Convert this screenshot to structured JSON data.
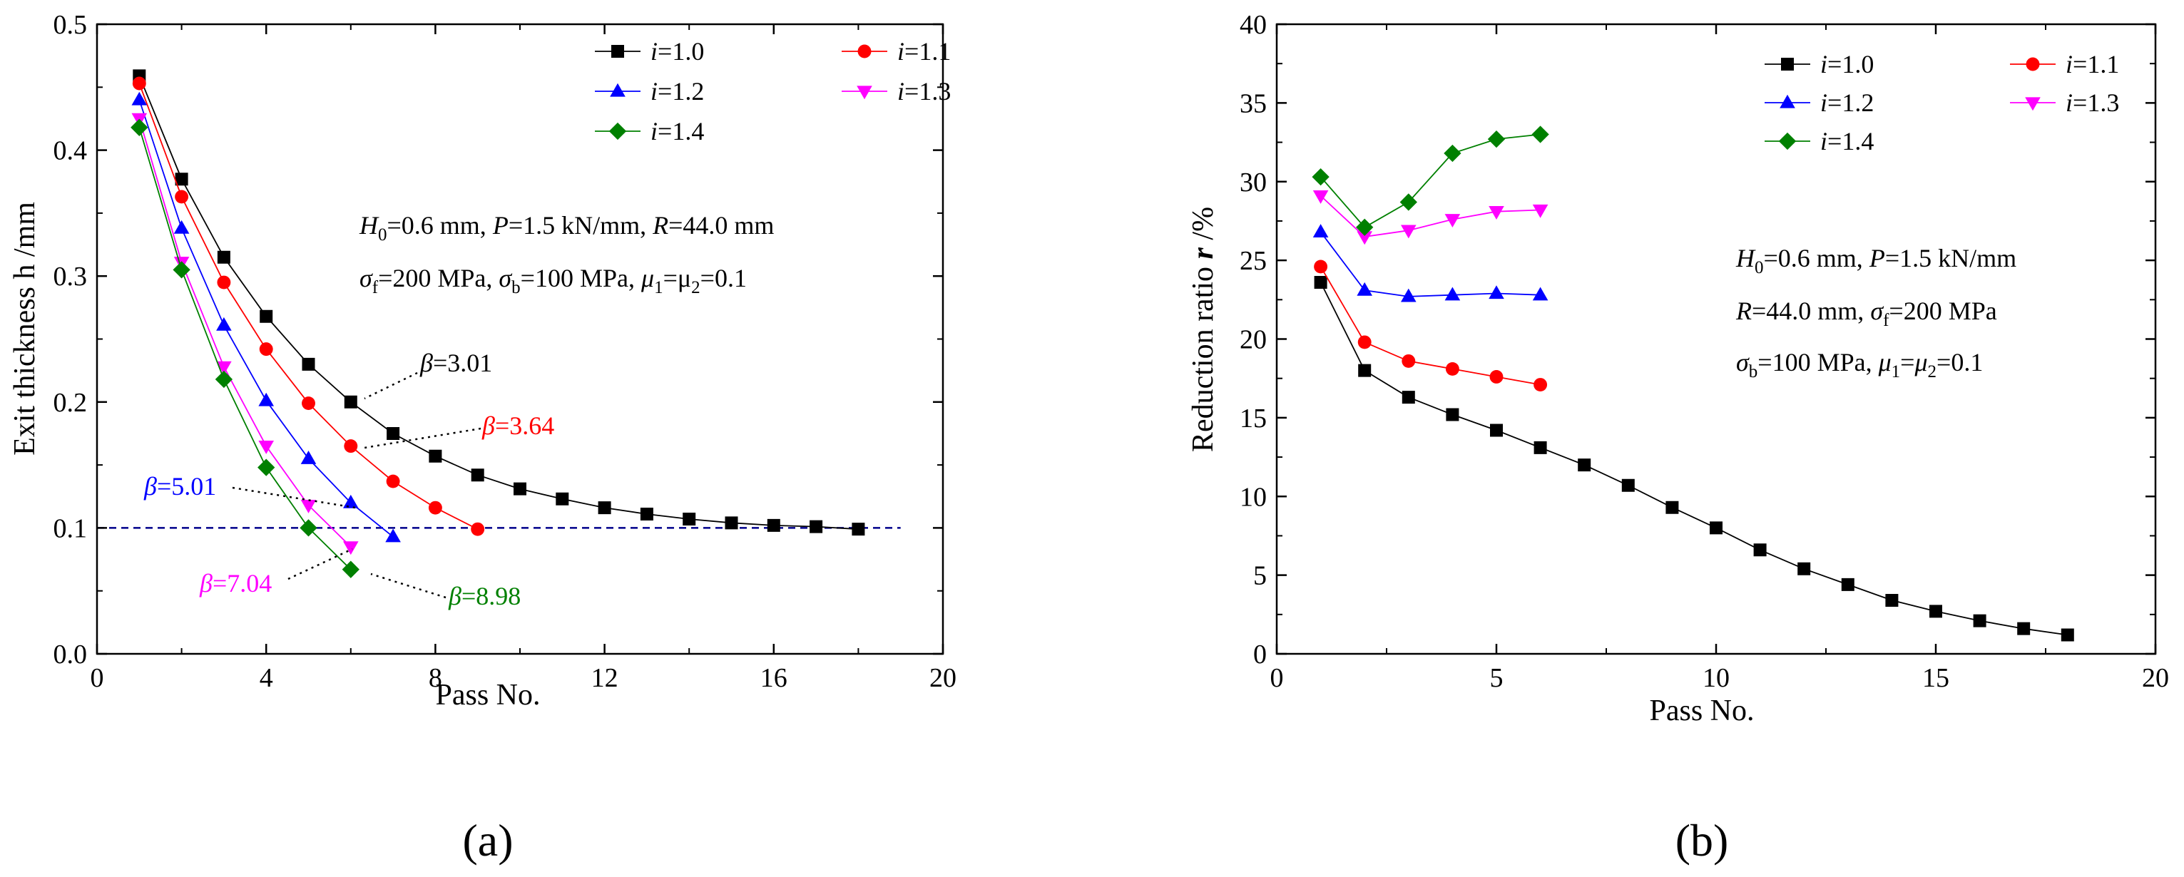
{
  "chart_data": [
    {
      "type": "line",
      "panel_label": "(a)",
      "xlabel": "Pass No.",
      "ylabel": "Exit thickness h /mm",
      "xlim": [
        0,
        20
      ],
      "ylim": [
        0,
        0.5
      ],
      "x_ticks": [
        0,
        4,
        8,
        12,
        16,
        20
      ],
      "y_ticks": [
        0.0,
        0.1,
        0.2,
        0.3,
        0.4,
        0.5
      ],
      "x_tick_labels": [
        "0",
        "4",
        "8",
        "12",
        "16",
        "20"
      ],
      "y_tick_labels": [
        "0.0",
        "0.1",
        "0.2",
        "0.3",
        "0.4",
        "0.5"
      ],
      "grid": false,
      "legend_position": "top-right",
      "series": [
        {
          "name": "i=1.0",
          "legend_var": "i",
          "legend_val": "=1.0",
          "color": "#000000",
          "marker": "square",
          "x": [
            1,
            2,
            3,
            4,
            5,
            6,
            7,
            8,
            9,
            10,
            11,
            12,
            13,
            14,
            15,
            16,
            17,
            18
          ],
          "y": [
            0.459,
            0.377,
            0.315,
            0.268,
            0.23,
            0.2,
            0.175,
            0.157,
            0.142,
            0.131,
            0.123,
            0.116,
            0.111,
            0.107,
            0.104,
            0.102,
            0.101,
            0.099
          ]
        },
        {
          "name": "i=1.1",
          "legend_var": "i",
          "legend_val": "=1.1",
          "color": "#ff0000",
          "marker": "circle",
          "x": [
            1,
            2,
            3,
            4,
            5,
            6,
            7,
            8,
            9
          ],
          "y": [
            0.453,
            0.363,
            0.295,
            0.242,
            0.199,
            0.165,
            0.137,
            0.116,
            0.099
          ]
        },
        {
          "name": "i=1.2",
          "legend_var": "i",
          "legend_val": "=1.2",
          "color": "#0000ff",
          "marker": "triangle-up",
          "x": [
            1,
            2,
            3,
            4,
            5,
            6,
            7
          ],
          "y": [
            0.44,
            0.338,
            0.261,
            0.201,
            0.155,
            0.12,
            0.093
          ]
        },
        {
          "name": "i=1.3",
          "legend_var": "i",
          "legend_val": "=1.3",
          "color": "#ff00ff",
          "marker": "triangle-down",
          "x": [
            1,
            2,
            3,
            4,
            5,
            6
          ],
          "y": [
            0.425,
            0.311,
            0.228,
            0.165,
            0.118,
            0.085
          ]
        },
        {
          "name": "i=1.4",
          "legend_var": "i",
          "legend_val": "=1.4",
          "color": "#008000",
          "marker": "diamond",
          "x": [
            1,
            2,
            3,
            4,
            5,
            6
          ],
          "y": [
            0.418,
            0.305,
            0.218,
            0.148,
            0.1,
            0.067
          ]
        }
      ],
      "reference_line": {
        "y": 0.1,
        "color": "#00008b"
      },
      "params": {
        "line1": {
          "H": "H",
          "H_sub": "0",
          "t1": "=0.6 mm, ",
          "P": "P",
          "t2": "=1.5 kN/mm, ",
          "R": "R",
          "t3": "=44.0 mm"
        },
        "line2": {
          "sf": "σ",
          "sf_sub": "f",
          "t1": "=200 MPa, ",
          "sb": "σ",
          "sb_sub": "b",
          "t2": "=100 MPa, ",
          "mu1": "μ",
          "mu1_sub": "1",
          "t3": "=μ",
          "mu2_sub": "2",
          "t4": "=0.1"
        }
      },
      "annotations": [
        {
          "sym": "β",
          "value": "=3.01",
          "color": "#000000",
          "target": [
            6,
            0.2
          ]
        },
        {
          "sym": "β",
          "value": "=3.64",
          "color": "#ff0000",
          "target": [
            6,
            0.165
          ]
        },
        {
          "sym": "β",
          "value": "=5.01",
          "color": "#0000ff",
          "target": [
            6,
            0.12
          ]
        },
        {
          "sym": "β",
          "value": "=7.04",
          "color": "#ff00ff",
          "target": [
            6,
            0.085
          ]
        },
        {
          "sym": "β",
          "value": "=8.98",
          "color": "#008000",
          "target": [
            6,
            0.067
          ]
        }
      ]
    },
    {
      "type": "line",
      "panel_label": "(b)",
      "xlabel": "Pass No.",
      "ylabel_main": "Reduction ratio ",
      "ylabel_var": "r",
      "ylabel_unit": " /%",
      "xlim": [
        0,
        20
      ],
      "ylim": [
        0,
        40
      ],
      "x_ticks": [
        0,
        5,
        10,
        15,
        20
      ],
      "y_ticks": [
        0,
        5,
        10,
        15,
        20,
        25,
        30,
        35,
        40
      ],
      "x_tick_labels": [
        "0",
        "5",
        "10",
        "15",
        "20"
      ],
      "y_tick_labels": [
        "0",
        "5",
        "10",
        "15",
        "20",
        "25",
        "30",
        "35",
        "40"
      ],
      "grid": false,
      "legend_position": "top-right",
      "series": [
        {
          "name": "i=1.0",
          "legend_var": "i",
          "legend_val": "=1.0",
          "color": "#000000",
          "marker": "square",
          "x": [
            1,
            2,
            3,
            4,
            5,
            6,
            7,
            8,
            9,
            10,
            11,
            12,
            13,
            14,
            15,
            16,
            17,
            18
          ],
          "y": [
            23.6,
            18.0,
            16.3,
            15.2,
            14.2,
            13.1,
            12.0,
            10.7,
            9.3,
            8.0,
            6.6,
            5.4,
            4.4,
            3.4,
            2.7,
            2.1,
            1.6,
            1.2
          ]
        },
        {
          "name": "i=1.1",
          "legend_var": "i",
          "legend_val": "=1.1",
          "color": "#ff0000",
          "marker": "circle",
          "x": [
            1,
            2,
            3,
            4,
            5,
            6
          ],
          "y": [
            24.6,
            19.8,
            18.6,
            18.1,
            17.6,
            17.1
          ]
        },
        {
          "name": "i=1.2",
          "legend_var": "i",
          "legend_val": "=1.2",
          "color": "#0000ff",
          "marker": "triangle-up",
          "x": [
            1,
            2,
            3,
            4,
            5,
            6
          ],
          "y": [
            26.8,
            23.1,
            22.7,
            22.8,
            22.9,
            22.8
          ]
        },
        {
          "name": "i=1.3",
          "legend_var": "i",
          "legend_val": "=1.3",
          "color": "#ff00ff",
          "marker": "triangle-down",
          "x": [
            1,
            2,
            3,
            4,
            5,
            6
          ],
          "y": [
            29.1,
            26.5,
            26.9,
            27.6,
            28.1,
            28.2
          ]
        },
        {
          "name": "i=1.4",
          "legend_var": "i",
          "legend_val": "=1.4",
          "color": "#008000",
          "marker": "diamond",
          "x": [
            1,
            2,
            3,
            4,
            5,
            6
          ],
          "y": [
            30.3,
            27.1,
            28.7,
            31.8,
            32.7,
            33.0
          ]
        }
      ],
      "params": {
        "line1": {
          "H": "H",
          "H_sub": "0",
          "t1": "=0.6 mm, ",
          "P": "P",
          "t2": "=1.5 kN/mm"
        },
        "line2": {
          "R": "R",
          "t1": "=44.0 mm, ",
          "sf": "σ",
          "sf_sub": "f",
          "t2": "=200 MPa"
        },
        "line3": {
          "sb": "σ",
          "sb_sub": "b",
          "t1": "=100 MPa, ",
          "mu1": "μ",
          "mu1_sub": "1",
          "t2": "=",
          "mu2": "μ",
          "mu2_sub": "2",
          "t3": "=0.1"
        }
      }
    }
  ]
}
